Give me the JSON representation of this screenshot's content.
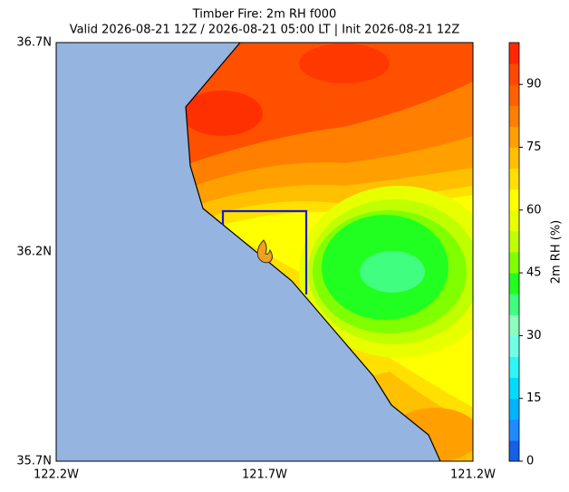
{
  "map": {
    "title": "Timber Fire: 2m RH f000",
    "subtitle": "Valid 2026-08-21 12Z / 2026-08-21 05:00 LT | Init 2026-08-21 12Z",
    "lat_labels": [
      "36.7N",
      "36.2N",
      "35.7N"
    ],
    "lon_labels": [
      "122.2W",
      "121.7W",
      "121.2W"
    ],
    "colorbar": {
      "label": "2m RH (%)",
      "lim": [
        0,
        100
      ],
      "ticks": [
        0,
        15,
        30,
        45,
        60,
        75,
        90
      ],
      "colors": [
        "#1560e6",
        "#1e8cff",
        "#00b4ff",
        "#00dcff",
        "#30f5f5",
        "#70ffe6",
        "#8cffc0",
        "#40ff80",
        "#20ff20",
        "#80ff00",
        "#c0ff00",
        "#e8ff00",
        "#ffff00",
        "#ffe000",
        "#ffc000",
        "#ffa000",
        "#ff8000",
        "#ff6000",
        "#ff4800",
        "#ff2800"
      ]
    }
  }
}
